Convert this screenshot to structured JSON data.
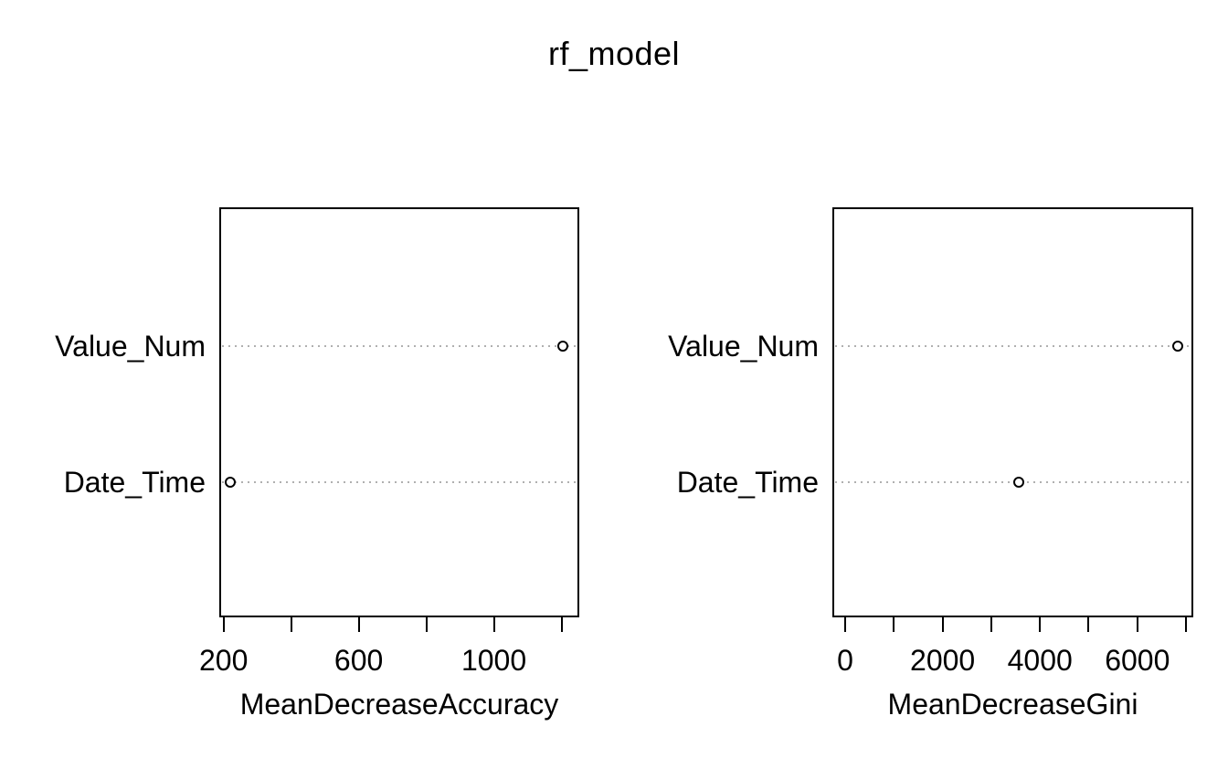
{
  "page": {
    "title": "rf_model"
  },
  "colors": {
    "foreground": "#000000",
    "background": "#ffffff",
    "grid_dotted": "#b0b0b0",
    "point_fill": "#ffffff",
    "point_stroke": "#000000"
  },
  "chart_data": [
    {
      "type": "scatter",
      "subtype": "dot-chart",
      "xlabel": "MeanDecreaseAccuracy",
      "ylabel": "",
      "categories": [
        "Value_Num",
        "Date_Time"
      ],
      "values": [
        1205,
        220
      ],
      "xlim": [
        190,
        1250
      ],
      "xticks": [
        200,
        400,
        600,
        800,
        1000,
        1200
      ],
      "xtick_labels": [
        "200",
        "",
        "600",
        "",
        "1000",
        ""
      ],
      "grid": "horizontal-dotted",
      "legend": "none"
    },
    {
      "type": "scatter",
      "subtype": "dot-chart",
      "xlabel": "MeanDecreaseGini",
      "ylabel": "",
      "categories": [
        "Value_Num",
        "Date_Time"
      ],
      "values": [
        6830,
        3560
      ],
      "xlim": [
        -245,
        7130
      ],
      "xticks": [
        0,
        1000,
        2000,
        3000,
        4000,
        5000,
        6000,
        7000
      ],
      "xtick_labels": [
        "0",
        "",
        "2000",
        "",
        "4000",
        "",
        "6000",
        ""
      ],
      "grid": "horizontal-dotted",
      "legend": "none"
    }
  ]
}
